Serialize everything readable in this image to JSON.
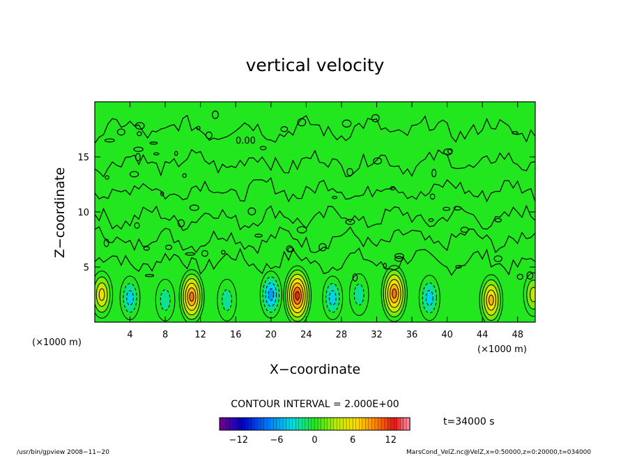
{
  "chart_data": {
    "type": "heatmap",
    "title": "vertical velocity",
    "xlabel": "X−coordinate",
    "ylabel": "Z−coordinate",
    "x_units_left": "(×1000 m)",
    "x_units_right": "(×1000 m)",
    "xlim": [
      0,
      50
    ],
    "ylim": [
      0,
      20
    ],
    "x_ticks": [
      4,
      8,
      12,
      16,
      20,
      24,
      28,
      32,
      36,
      40,
      44,
      48
    ],
    "y_ticks": [
      5,
      10,
      15
    ],
    "contour_label": "0.00",
    "contour_interval_text": "CONTOUR INTERVAL = 2.000E+00",
    "time_text": "t=34000  s",
    "colorbar": {
      "range": [
        -15,
        15
      ],
      "ticks": [
        -12,
        -6,
        0,
        6,
        12
      ],
      "tick_labels": [
        "−12",
        "−6",
        "0",
        "6",
        "12"
      ]
    },
    "features": [
      {
        "x": 0.8,
        "z": 2.5,
        "value": 6
      },
      {
        "x": 4.0,
        "z": 2.2,
        "value": -4
      },
      {
        "x": 8.0,
        "z": 2.0,
        "value": -3
      },
      {
        "x": 11.0,
        "z": 2.3,
        "value": 10
      },
      {
        "x": 15.0,
        "z": 2.0,
        "value": -3
      },
      {
        "x": 20.0,
        "z": 2.5,
        "value": -6
      },
      {
        "x": 23.0,
        "z": 2.4,
        "value": 13
      },
      {
        "x": 27.0,
        "z": 2.2,
        "value": -4
      },
      {
        "x": 30.0,
        "z": 2.5,
        "value": -3
      },
      {
        "x": 34.0,
        "z": 2.6,
        "value": 11
      },
      {
        "x": 38.0,
        "z": 2.2,
        "value": -5
      },
      {
        "x": 45.0,
        "z": 2.0,
        "value": 8
      },
      {
        "x": 49.8,
        "z": 2.5,
        "value": 4
      }
    ],
    "colors": {
      "background_field": "#22e61e",
      "contour_line": "#000000"
    }
  },
  "footer": {
    "left": "/usr/bin/gpview   2008−11−20",
    "right": "MarsCond_VelZ.nc@VelZ,x=0:50000,z=0:20000,t=034000"
  }
}
